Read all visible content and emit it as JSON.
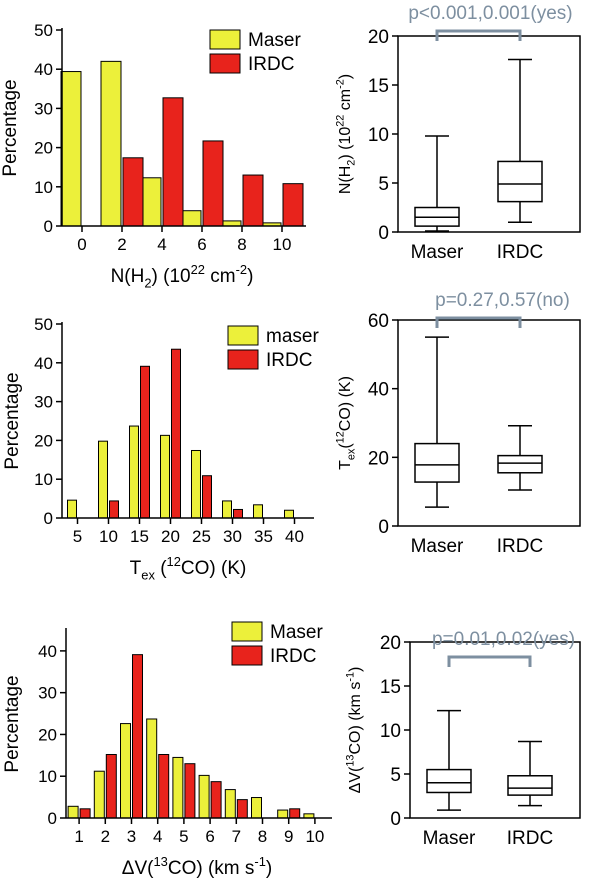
{
  "colors": {
    "maser": "#ecf03a",
    "irdc": "#e8231c",
    "axis": "#000000",
    "sig": "#7d8fa0"
  },
  "chart_data": [
    {
      "id": "hist_nh2",
      "type": "bar",
      "ylabel": "Percentage",
      "xlabel_parts": [
        "N(H",
        "2",
        ") (10",
        "22",
        " cm",
        "-2",
        ")"
      ],
      "ylim": [
        0,
        50
      ],
      "yticks": [
        0,
        10,
        20,
        30,
        40,
        50
      ],
      "tick_labels": [
        "0",
        "2",
        "4",
        "6",
        "8",
        "10"
      ],
      "legend": [
        "Maser",
        "IRDC"
      ],
      "series": [
        {
          "name": "Maser",
          "values": [
            39.4,
            42.0,
            12.3,
            3.9,
            1.3,
            0.8
          ]
        },
        {
          "name": "IRDC",
          "values": [
            0,
            17.4,
            32.7,
            21.7,
            13.0,
            10.8
          ]
        }
      ]
    },
    {
      "id": "box_nh2",
      "type": "box",
      "significance": "p<0.001,0.001(yes)",
      "ylabel_parts": [
        "N(H",
        "2",
        ") (10",
        "22",
        " cm",
        "-2",
        ")"
      ],
      "ylim": [
        0,
        20
      ],
      "yticks": [
        0,
        5,
        10,
        15,
        20
      ],
      "categories": [
        "Maser",
        "IRDC"
      ],
      "boxes": [
        {
          "whisker_low": 0.1,
          "q1": 0.6,
          "median": 1.5,
          "q3": 2.5,
          "whisker_high": 9.8
        },
        {
          "whisker_low": 1.0,
          "q1": 3.1,
          "median": 4.9,
          "q3": 7.2,
          "whisker_high": 17.6
        }
      ]
    },
    {
      "id": "hist_tex",
      "type": "bar",
      "ylabel": "Percentage",
      "xlabel_parts": [
        "T",
        "ex",
        " (",
        "12",
        "CO) (K)"
      ],
      "ylim": [
        0,
        50
      ],
      "yticks": [
        0,
        10,
        20,
        30,
        40,
        50
      ],
      "tick_labels": [
        "5",
        "10",
        "15",
        "20",
        "25",
        "30",
        "35",
        "40"
      ],
      "legend": [
        "maser",
        "IRDC"
      ],
      "series": [
        {
          "name": "maser",
          "values": [
            4.6,
            19.8,
            23.7,
            21.3,
            17.4,
            4.4,
            3.4,
            2.0
          ]
        },
        {
          "name": "IRDC",
          "values": [
            0,
            4.4,
            39.1,
            43.5,
            10.9,
            2.2,
            0,
            0
          ]
        }
      ]
    },
    {
      "id": "box_tex",
      "type": "box",
      "significance": "p=0.27,0.57(no)",
      "ylabel_parts": [
        "T",
        "ex",
        "(",
        "12",
        "CO) (K)"
      ],
      "ylim": [
        0,
        60
      ],
      "yticks": [
        0,
        20,
        40,
        60
      ],
      "categories": [
        "Maser",
        "IRDC"
      ],
      "boxes": [
        {
          "whisker_low": 5.5,
          "q1": 12.8,
          "median": 17.8,
          "q3": 24.0,
          "whisker_high": 55.0
        },
        {
          "whisker_low": 10.5,
          "q1": 15.5,
          "median": 18.3,
          "q3": 20.5,
          "whisker_high": 29.2
        }
      ]
    },
    {
      "id": "hist_dv",
      "type": "bar",
      "ylabel": "Percentage",
      "xlabel_parts": [
        "ΔV(",
        "13",
        "CO)  (km s",
        "-1",
        ")"
      ],
      "ylim": [
        0,
        45
      ],
      "yticks": [
        0,
        10,
        20,
        30,
        40
      ],
      "tick_labels": [
        "1",
        "2",
        "3",
        "4",
        "5",
        "6",
        "7",
        "8",
        "9",
        "10"
      ],
      "legend": [
        "Maser",
        "IRDC"
      ],
      "series": [
        {
          "name": "Maser",
          "values": [
            2.8,
            11.2,
            22.6,
            23.7,
            14.5,
            10.2,
            6.8,
            4.9,
            1.9,
            1.0
          ]
        },
        {
          "name": "IRDC",
          "values": [
            2.2,
            15.2,
            39.1,
            15.2,
            13.0,
            8.7,
            4.4,
            0,
            2.2,
            0
          ]
        }
      ]
    },
    {
      "id": "box_dv",
      "type": "box",
      "significance": "p=0.01,0.02(yes)",
      "ylabel_parts": [
        "ΔV(",
        "13",
        "CO)  (km s",
        "-1",
        ")"
      ],
      "ylim": [
        0,
        20
      ],
      "yticks": [
        0,
        5,
        10,
        15,
        20
      ],
      "categories": [
        "Maser",
        "IRDC"
      ],
      "boxes": [
        {
          "whisker_low": 0.9,
          "q1": 2.9,
          "median": 4.0,
          "q3": 5.5,
          "whisker_high": 12.2
        },
        {
          "whisker_low": 1.4,
          "q1": 2.6,
          "median": 3.4,
          "q3": 4.8,
          "whisker_high": 8.7
        }
      ]
    }
  ]
}
